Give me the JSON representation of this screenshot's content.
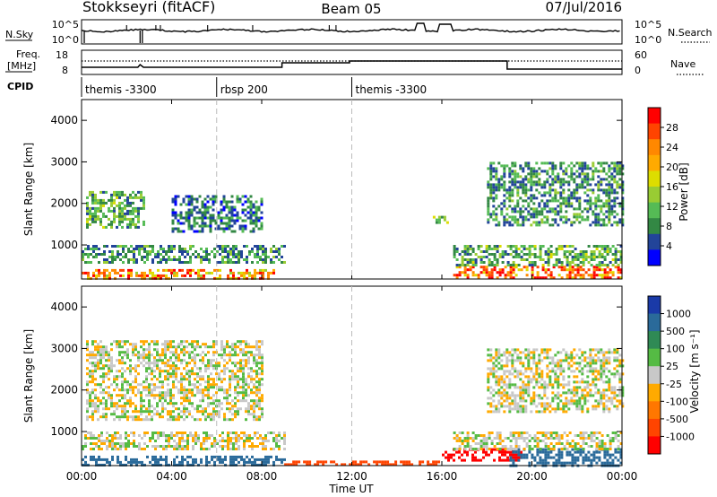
{
  "header": {
    "title": "Stokkseyri (fitACF)",
    "beam": "Beam 05",
    "date": "07/Jul/2016"
  },
  "strip_panels": {
    "sky": {
      "left_label": "N.Sky",
      "left_ticks": [
        "10^5",
        "10^0"
      ],
      "right_label": "N.Search",
      "right_ticks": [
        "10^5",
        "10^0"
      ]
    },
    "freq": {
      "left_label_line1": "Freq.",
      "left_label_line2": "[MHz]",
      "left_ticks": [
        "18",
        "8"
      ],
      "right_label": "Nave",
      "right_ticks": [
        "60",
        "0"
      ]
    },
    "cpid": {
      "label": "CPID",
      "segments": [
        {
          "label": "themis -3300",
          "start_hr": 0,
          "end_hr": 6
        },
        {
          "label": "rbsp 200",
          "start_hr": 6,
          "end_hr": 12
        },
        {
          "label": "themis -3300",
          "start_hr": 12,
          "end_hr": 24
        }
      ]
    }
  },
  "colorbars": {
    "power": {
      "label": "Power [dB]",
      "ticks": [
        "28",
        "24",
        "20",
        "16",
        "12",
        "8",
        "4"
      ],
      "colors": [
        "#ff0000",
        "#ff4400",
        "#ff8800",
        "#ffaa00",
        "#dddd00",
        "#99cc33",
        "#55bb55",
        "#338844",
        "#224499",
        "#0000ff"
      ]
    },
    "velocity": {
      "label": "Velocity [m s⁻¹]",
      "ticks": [
        "1000",
        "500",
        "100",
        "25",
        "-25",
        "-100",
        "-500",
        "-1000"
      ],
      "colors": [
        "#1a3aa8",
        "#2a6a9a",
        "#2f8a55",
        "#55bb44",
        "#c8c8c8",
        "#ffaa00",
        "#ff7700",
        "#ff4400",
        "#ff0000"
      ]
    }
  },
  "axes": {
    "ylabel": "Slant Range [km]",
    "yticks": [
      "4000",
      "3000",
      "2000",
      "1000"
    ],
    "xticks": [
      "00:00",
      "04:00",
      "08:00",
      "12:00",
      "16:00",
      "20:00",
      "00:00"
    ],
    "xlabel": "Time UT"
  },
  "chart_data": [
    {
      "type": "heatmap",
      "name": "power",
      "x_unit": "hours UT",
      "y_unit": "km",
      "xlim": [
        0,
        24
      ],
      "ylim": [
        180,
        4500
      ],
      "colorbar_range": [
        0,
        30
      ],
      "regions": [
        {
          "x": [
            0,
            8.5
          ],
          "y": [
            200,
            420
          ],
          "value": 22
        },
        {
          "x": [
            0.2,
            2.8
          ],
          "y": [
            1400,
            2300
          ],
          "value": 10
        },
        {
          "x": [
            0,
            9
          ],
          "y": [
            600,
            1000
          ],
          "value": 8
        },
        {
          "x": [
            4,
            8
          ],
          "y": [
            1300,
            2200
          ],
          "value": 6
        },
        {
          "x": [
            15.6,
            16.2
          ],
          "y": [
            1550,
            1700
          ],
          "value": 12
        },
        {
          "x": [
            16.5,
            24
          ],
          "y": [
            200,
            500
          ],
          "value": 24
        },
        {
          "x": [
            16.5,
            24
          ],
          "y": [
            500,
            1000
          ],
          "value": 10
        },
        {
          "x": [
            18,
            24
          ],
          "y": [
            1500,
            3000
          ],
          "value": 8
        }
      ]
    },
    {
      "type": "heatmap",
      "name": "velocity",
      "x_unit": "hours UT",
      "y_unit": "km",
      "xlim": [
        0,
        24
      ],
      "ylim": [
        180,
        4500
      ],
      "colorbar_range": [
        -1000,
        1000
      ],
      "regions": [
        {
          "x": [
            0,
            9
          ],
          "y": [
            200,
            420
          ],
          "value": 100
        },
        {
          "x": [
            0,
            9
          ],
          "y": [
            600,
            1000
          ],
          "value": 0
        },
        {
          "x": [
            0.2,
            8
          ],
          "y": [
            1300,
            3200
          ],
          "value": 0
        },
        {
          "x": [
            9,
            16
          ],
          "y": [
            200,
            300
          ],
          "value": -100
        },
        {
          "x": [
            16,
            19.5
          ],
          "y": [
            300,
            600
          ],
          "value": -300
        },
        {
          "x": [
            19,
            24
          ],
          "y": [
            200,
            600
          ],
          "value": 100
        },
        {
          "x": [
            16.5,
            24
          ],
          "y": [
            600,
            1000
          ],
          "value": 0
        },
        {
          "x": [
            18,
            24
          ],
          "y": [
            1500,
            3000
          ],
          "value": 0
        }
      ]
    }
  ]
}
